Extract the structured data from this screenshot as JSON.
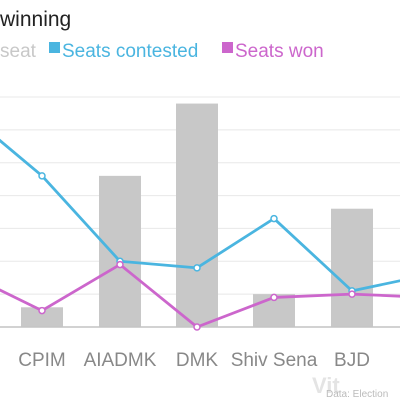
{
  "chart_data": {
    "type": "bar",
    "title": "winning",
    "categories": [
      "",
      "CPIM",
      "AIADMK",
      "DMK",
      "Shiv Sena",
      "BJD",
      ""
    ],
    "ylim": [
      0,
      70
    ],
    "grid": true,
    "legend_position": "top",
    "series": [
      {
        "name": "seat",
        "type": "bar",
        "color": "#c8c8c8",
        "values": [
          null,
          6,
          46,
          68,
          10,
          36,
          null
        ]
      },
      {
        "name": "Seats contested",
        "type": "line",
        "color": "#4ab5e0",
        "values": [
          58,
          46,
          20,
          18,
          33,
          11,
          16
        ]
      },
      {
        "name": "Seats won",
        "type": "line",
        "color": "#cc66cc",
        "values": [
          12,
          5,
          19,
          0,
          9,
          10,
          9
        ]
      }
    ],
    "source": "Data: Election",
    "watermark": "Vit"
  }
}
